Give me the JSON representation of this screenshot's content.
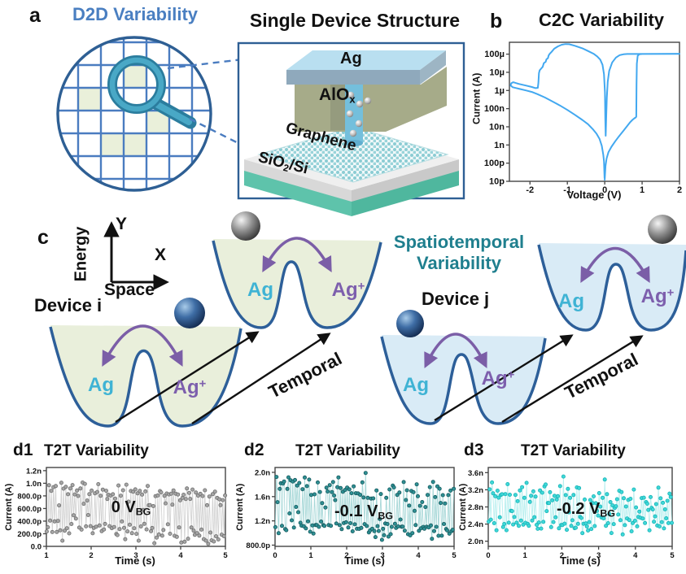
{
  "panel_a": {
    "label": "a",
    "title": "D2D Variability",
    "accent_color": "#4a7fc1"
  },
  "device_structure": {
    "title": "Single Device Structure",
    "electrode_label": "Ag",
    "oxide_label_base": "AlO",
    "oxide_label_sub": "x",
    "channel_label": "Graphene",
    "substrate_label_base": "SiO",
    "substrate_label_sub": "2",
    "substrate_label_rest": "/Si"
  },
  "panel_b": {
    "label": "b",
    "title": "C2C Variability",
    "xlabel": "Voltage (V)",
    "ylabel": "Current (A)"
  },
  "panel_c": {
    "label": "c",
    "energy_label": "Energy",
    "space_label": "Space",
    "x_label": "X",
    "y_label": "Y",
    "device_i_label": "Device i",
    "device_j_label": "Device j",
    "center_title_line1": "Spatiotemporal",
    "center_title_line2": "Variability",
    "center_title_color": "#1f7f8e",
    "ag_label": "Ag",
    "ag_ion_base": "Ag",
    "ag_ion_sup": "+",
    "ag_color": "#3fb3d4",
    "ag_ion_color": "#7d5fad",
    "temporal_label": "Temporal"
  },
  "panel_d": [
    {
      "label": "d1",
      "title": "T2T Variability",
      "xlabel": "Time (s)",
      "ylabel": "Current (A)",
      "annotation_main": "0 V",
      "annotation_sub": "BG"
    },
    {
      "label": "d2",
      "title": "T2T Variability",
      "xlabel": "Time (s)",
      "ylabel": "Current (A)",
      "annotation_main": "-0.1 V",
      "annotation_sub": "BG"
    },
    {
      "label": "d3",
      "title": "T2T Variability",
      "xlabel": "Time (s)",
      "ylabel": "Current (A)",
      "annotation_main": "-0.2 V",
      "annotation_sub": "BG"
    }
  ],
  "chart_data": [
    {
      "id": "c2c_iv",
      "type": "line",
      "title": "C2C Variability",
      "xlabel": "Voltage (V)",
      "ylabel": "Current (A)",
      "x_range": [
        -2.55,
        2.0
      ],
      "x_ticks": [
        -2,
        -1,
        0,
        1,
        2
      ],
      "y_scale": "log",
      "y_range": [
        1e-11,
        0.00045
      ],
      "y_ticks": [
        {
          "v": 1e-11,
          "label": "10p"
        },
        {
          "v": 1e-10,
          "label": "100p"
        },
        {
          "v": 1e-09,
          "label": "1n"
        },
        {
          "v": 1e-08,
          "label": "10n"
        },
        {
          "v": 1e-07,
          "label": "100n"
        },
        {
          "v": 1e-06,
          "label": "1µ"
        },
        {
          "v": 1e-05,
          "label": "10µ"
        },
        {
          "v": 0.0001,
          "label": "100µ"
        }
      ],
      "line_color": "#42a8f0",
      "points": [
        [
          0.0,
          1.2e-11
        ],
        [
          0.02,
          7e-11
        ],
        [
          0.05,
          1.8e-10
        ],
        [
          0.1,
          4e-10
        ],
        [
          0.18,
          8e-10
        ],
        [
          0.28,
          1.6e-09
        ],
        [
          0.38,
          3e-09
        ],
        [
          0.5,
          6e-09
        ],
        [
          0.6,
          1.1e-08
        ],
        [
          0.68,
          1.8e-08
        ],
        [
          0.74,
          2.4e-08
        ],
        [
          0.79,
          2.9e-08
        ],
        [
          0.83,
          3.3e-08
        ],
        [
          0.845,
          3.6e-08
        ],
        [
          0.85,
          2e-06
        ],
        [
          0.86,
          3e-05
        ],
        [
          0.88,
          8e-05
        ],
        [
          0.92,
          9.8e-05
        ],
        [
          1.0,
          0.000102
        ],
        [
          2.0,
          0.000104
        ],
        [
          0.6,
          0.000102
        ],
        [
          0.5,
          9.8e-05
        ],
        [
          0.4,
          8.8e-05
        ],
        [
          0.3,
          6.5e-05
        ],
        [
          0.2,
          3.5e-05
        ],
        [
          0.12,
          1.2e-05
        ],
        [
          0.08,
          3e-06
        ],
        [
          0.055,
          4e-07
        ],
        [
          0.04,
          4e-08
        ],
        [
          0.03,
          6e-09
        ],
        [
          0.025,
          3.2e-09
        ],
        [
          0.015,
          3e-08
        ],
        [
          0.005,
          8e-07
        ],
        [
          -0.02,
          8e-06
        ],
        [
          -0.06,
          2.6e-05
        ],
        [
          -0.12,
          5e-05
        ],
        [
          -0.2,
          7.5e-05
        ],
        [
          -0.3,
          0.000105
        ],
        [
          -0.45,
          0.00015
        ],
        [
          -0.6,
          0.00021
        ],
        [
          -0.8,
          0.00029
        ],
        [
          -0.95,
          0.00035
        ],
        [
          -1.05,
          0.00036
        ],
        [
          -1.15,
          0.00033
        ],
        [
          -1.25,
          0.00027
        ],
        [
          -1.35,
          0.0002
        ],
        [
          -1.42,
          0.000135
        ],
        [
          -1.47,
          0.000105
        ],
        [
          -1.5,
          8.5e-05
        ],
        [
          -1.52,
          6e-05
        ],
        [
          -1.56,
          5.2e-05
        ],
        [
          -1.58,
          3.8e-05
        ],
        [
          -1.63,
          3.2e-05
        ],
        [
          -1.66,
          2e-05
        ],
        [
          -1.7,
          1.6e-05
        ],
        [
          -1.74,
          1.3e-05
        ],
        [
          -1.76,
          9e-06
        ],
        [
          -1.775,
          2.6e-06
        ],
        [
          -1.79,
          1.4e-06
        ],
        [
          -1.85,
          1.35e-06
        ],
        [
          -1.95,
          1.55e-06
        ],
        [
          -2.1,
          1.85e-06
        ],
        [
          -2.3,
          2.3e-06
        ],
        [
          -2.45,
          2.85e-06
        ],
        [
          -2.5,
          2.5e-06
        ],
        [
          -2.52,
          1.9e-06
        ],
        [
          -2.46,
          1.5e-06
        ],
        [
          -2.3,
          1.25e-06
        ],
        [
          -2.1,
          1e-06
        ],
        [
          -1.95,
          8.3e-07
        ],
        [
          -1.8,
          6.3e-07
        ],
        [
          -1.6,
          4.1e-07
        ],
        [
          -1.4,
          2.5e-07
        ],
        [
          -1.2,
          1.5e-07
        ],
        [
          -1.0,
          8.5e-08
        ],
        [
          -0.8,
          4.6e-08
        ],
        [
          -0.6,
          2.4e-08
        ],
        [
          -0.45,
          1.4e-08
        ],
        [
          -0.32,
          7.5e-09
        ],
        [
          -0.22,
          4.2e-09
        ],
        [
          -0.14,
          2.2e-09
        ],
        [
          -0.08,
          9e-10
        ],
        [
          -0.04,
          3e-10
        ],
        [
          -0.02,
          1.3e-10
        ],
        [
          -0.005,
          1.5e-11
        ]
      ]
    },
    {
      "id": "t2t_d1",
      "type": "scatter_rtn",
      "title": "T2T Variability",
      "gate_bias": "0 V_BG",
      "xlabel": "Time (s)",
      "ylabel": "Current (A)",
      "x_range": [
        1,
        5
      ],
      "x_ticks": [
        1,
        2,
        3,
        4,
        5
      ],
      "y_range": [
        0,
        1.25e-09
      ],
      "y_ticks": [
        {
          "v": 0,
          "label": "0.0"
        },
        {
          "v": 2e-10,
          "label": "200.0p"
        },
        {
          "v": 4e-10,
          "label": "400.0p"
        },
        {
          "v": 6e-10,
          "label": "600.0p"
        },
        {
          "v": 8e-10,
          "label": "800.0p"
        },
        {
          "v": 1e-09,
          "label": "1.0n"
        },
        {
          "v": 1.2e-09,
          "label": "1.2n"
        }
      ],
      "bands": {
        "high_start": 9.3e-10,
        "high_end": 7.9e-10,
        "high_sd": 6.5e-11,
        "low_start": 3.4e-10,
        "low_end": 1.5e-10,
        "low_sd": 9e-11
      },
      "n_points": 160,
      "seed": 11,
      "colors": {
        "dot": "#a6a6a6",
        "edge": "#6e6e6e",
        "line": "#d2d2d2"
      }
    },
    {
      "id": "t2t_d2",
      "type": "scatter_rtn",
      "title": "T2T Variability",
      "gate_bias": "-0.1 V_BG",
      "xlabel": "Time (s)",
      "ylabel": "Current (A)",
      "x_range": [
        0,
        5
      ],
      "x_ticks": [
        0,
        1,
        2,
        3,
        4,
        5
      ],
      "y_range": [
        7.8e-10,
        2.08e-09
      ],
      "y_ticks": [
        {
          "v": 8e-10,
          "label": "800.0p"
        },
        {
          "v": 1.2e-09,
          "label": "1.2n"
        },
        {
          "v": 1.6e-09,
          "label": "1.6n"
        },
        {
          "v": 2e-09,
          "label": "2.0n"
        }
      ],
      "bands": {
        "high_start": 1.8e-09,
        "high_end": 1.6e-09,
        "high_sd": 1.1e-10,
        "low_start": 1.13e-09,
        "low_end": 1.04e-09,
        "low_sd": 7e-11
      },
      "n_points": 165,
      "seed": 23,
      "colors": {
        "dot": "#2f9094",
        "edge": "#14595d",
        "line": "#a8d8d8"
      }
    },
    {
      "id": "t2t_d3",
      "type": "scatter_rtn",
      "title": "T2T Variability",
      "gate_bias": "-0.2 V_BG",
      "xlabel": "Time (s)",
      "ylabel": "Current (A)",
      "x_range": [
        0,
        5
      ],
      "x_ticks": [
        0,
        1,
        2,
        3,
        4,
        5
      ],
      "y_range": [
        1.88e-09,
        3.72e-09
      ],
      "y_ticks": [
        {
          "v": 2e-09,
          "label": "2.0n"
        },
        {
          "v": 2.4e-09,
          "label": "2.4n"
        },
        {
          "v": 2.8e-09,
          "label": "2.8n"
        },
        {
          "v": 3.2e-09,
          "label": "3.2n"
        },
        {
          "v": 3.6e-09,
          "label": "3.6n"
        }
      ],
      "bands": {
        "high_start": 3.12e-09,
        "high_end": 2.98e-09,
        "high_sd": 1.5e-10,
        "low_start": 2.46e-09,
        "low_end": 2.38e-09,
        "low_sd": 1.2e-10
      },
      "n_points": 165,
      "seed": 37,
      "colors": {
        "dot": "#3fd8d8",
        "edge": "#17b3b6",
        "line": "#b9efef"
      }
    }
  ]
}
